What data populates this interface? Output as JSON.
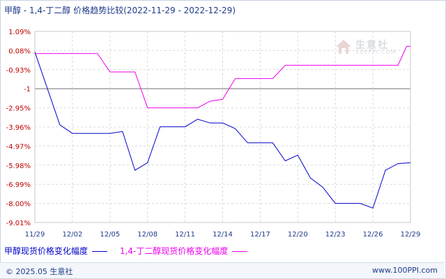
{
  "title": "甲醇 - 1,4-丁二醇 价格趋势比较",
  "date_range": "(2022-11-29 - 2022-12-29)",
  "watermark": {
    "name": "生意社",
    "url": "100PPI.COM"
  },
  "footer": {
    "copyright": "© 2025.05 生意社",
    "site": "www.100PPI.com"
  },
  "colors": {
    "series1": "#0000cc",
    "series2": "#ee00ee",
    "axis_tick": "#c00000",
    "x_tick": "#1f3a8a",
    "grid": "#d9d9d9",
    "baseline": "#808080"
  },
  "chart_data": {
    "type": "line",
    "title": "甲醇 - 1,4-丁二醇 价格趋势比较",
    "x_tick_labels": [
      "11/29",
      "12/02",
      "12/05",
      "12/08",
      "12/11",
      "12/14",
      "12/17",
      "12/20",
      "12/23",
      "12/26",
      "12/29"
    ],
    "y_tick_labels": [
      "1.09%",
      "0.08%",
      "-0.93%",
      "-1",
      "-2.95%",
      "-3.96%",
      "-4.97%",
      "-5.98%",
      "-6.99%",
      "-8.00%",
      "-9.01%"
    ],
    "ylim": [
      -9.01,
      1.09
    ],
    "xlim": [
      0,
      30
    ],
    "grid": true,
    "legend_position": "bottom",
    "series": [
      {
        "name": "甲醇现货价格变化幅度",
        "color": "#0000cc",
        "points": [
          [
            0,
            0.0
          ],
          [
            2,
            -3.85
          ],
          [
            3,
            -4.3
          ],
          [
            4,
            -4.3
          ],
          [
            5,
            -4.3
          ],
          [
            6,
            -4.3
          ],
          [
            7,
            -4.2
          ],
          [
            8,
            -6.25
          ],
          [
            9,
            -5.85
          ],
          [
            10,
            -3.95
          ],
          [
            11,
            -3.95
          ],
          [
            12,
            -3.95
          ],
          [
            13,
            -3.55
          ],
          [
            14,
            -3.75
          ],
          [
            15,
            -3.75
          ],
          [
            16,
            -4.05
          ],
          [
            17,
            -4.8
          ],
          [
            18,
            -4.8
          ],
          [
            19,
            -4.8
          ],
          [
            20,
            -5.75
          ],
          [
            21,
            -5.45
          ],
          [
            22,
            -6.65
          ],
          [
            23,
            -7.15
          ],
          [
            24,
            -8.0
          ],
          [
            25,
            -8.0
          ],
          [
            26,
            -8.0
          ],
          [
            27,
            -8.25
          ],
          [
            28,
            -6.25
          ],
          [
            29,
            -5.9
          ],
          [
            30,
            -5.85
          ]
        ]
      },
      {
        "name": "1,4-丁二醇现货价格变化幅度",
        "color": "#ee00ee",
        "points": [
          [
            0,
            -0.08
          ],
          [
            5,
            -0.08
          ],
          [
            6,
            -1.05
          ],
          [
            8,
            -1.05
          ],
          [
            9,
            -2.95
          ],
          [
            13,
            -2.95
          ],
          [
            14,
            -2.6
          ],
          [
            15,
            -2.5
          ],
          [
            16,
            -1.4
          ],
          [
            19,
            -1.4
          ],
          [
            20,
            -0.7
          ],
          [
            29,
            -0.7
          ],
          [
            29.7,
            0.3
          ],
          [
            30,
            0.3
          ]
        ]
      }
    ]
  }
}
